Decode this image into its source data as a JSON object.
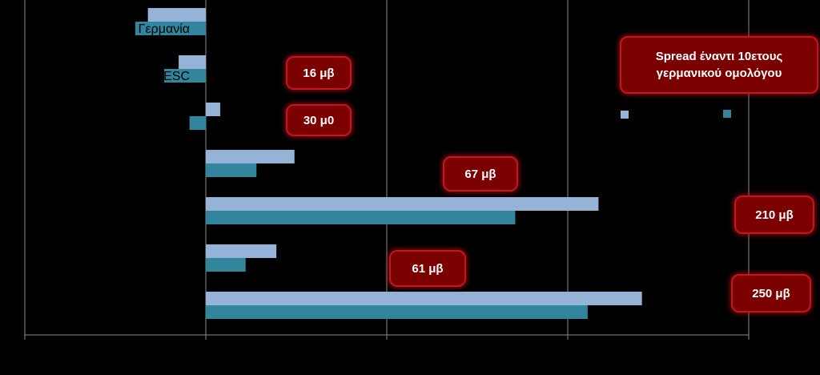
{
  "chart_data": {
    "type": "bar",
    "orientation": "horizontal",
    "categories": [
      "Γερμανία",
      "OESC",
      "",
      "",
      "",
      "",
      ""
    ],
    "series": [
      {
        "values": [
          -32,
          -15,
          8,
          49,
          217,
          39,
          241
        ]
      },
      {
        "values": [
          -39,
          -23,
          -9,
          28,
          171,
          22,
          211
        ]
      }
    ],
    "xlim": [
      -100,
      300
    ],
    "grid": true,
    "legend": "right",
    "colors": {
      "series1": "#95b3d7",
      "series2": "#31859c",
      "callout_bg": "#7b0000",
      "callout_border": "#c8141e"
    },
    "annotations": [
      {
        "text": "Spread έναντι 10ετους γερμανικού ομολόγου"
      },
      {
        "text": "16 μβ"
      },
      {
        "text": "30 μ0"
      },
      {
        "text": "67 μβ"
      },
      {
        "text": "210  μβ"
      },
      {
        "text": "61  μβ"
      },
      {
        "text": "250 μβ"
      }
    ]
  }
}
